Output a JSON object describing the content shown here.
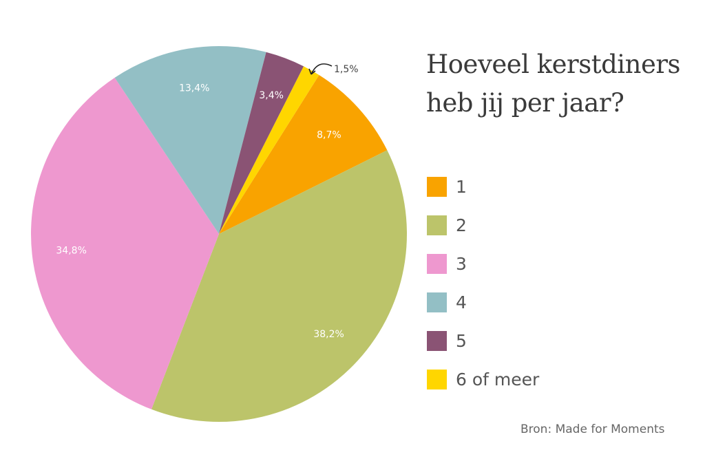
{
  "chart_data": {
    "type": "pie",
    "title": "Hoeveel kerstdiners heb jij per jaar?",
    "categories": [
      "1",
      "2",
      "3",
      "4",
      "5",
      "6 of meer"
    ],
    "values": [
      8.7,
      38.2,
      34.8,
      13.4,
      3.4,
      1.5
    ],
    "data_labels": [
      "8,7%",
      "38,2%",
      "34,8%",
      "13,4%",
      "3,4%",
      "1,5%"
    ],
    "colors": [
      "#F9A300",
      "#BCC46A",
      "#EE98CF",
      "#93BFC5",
      "#8A5374",
      "#FFD600"
    ],
    "direction": "clockwise",
    "legend_position": "right"
  },
  "source": "Bron: Made for Moments"
}
